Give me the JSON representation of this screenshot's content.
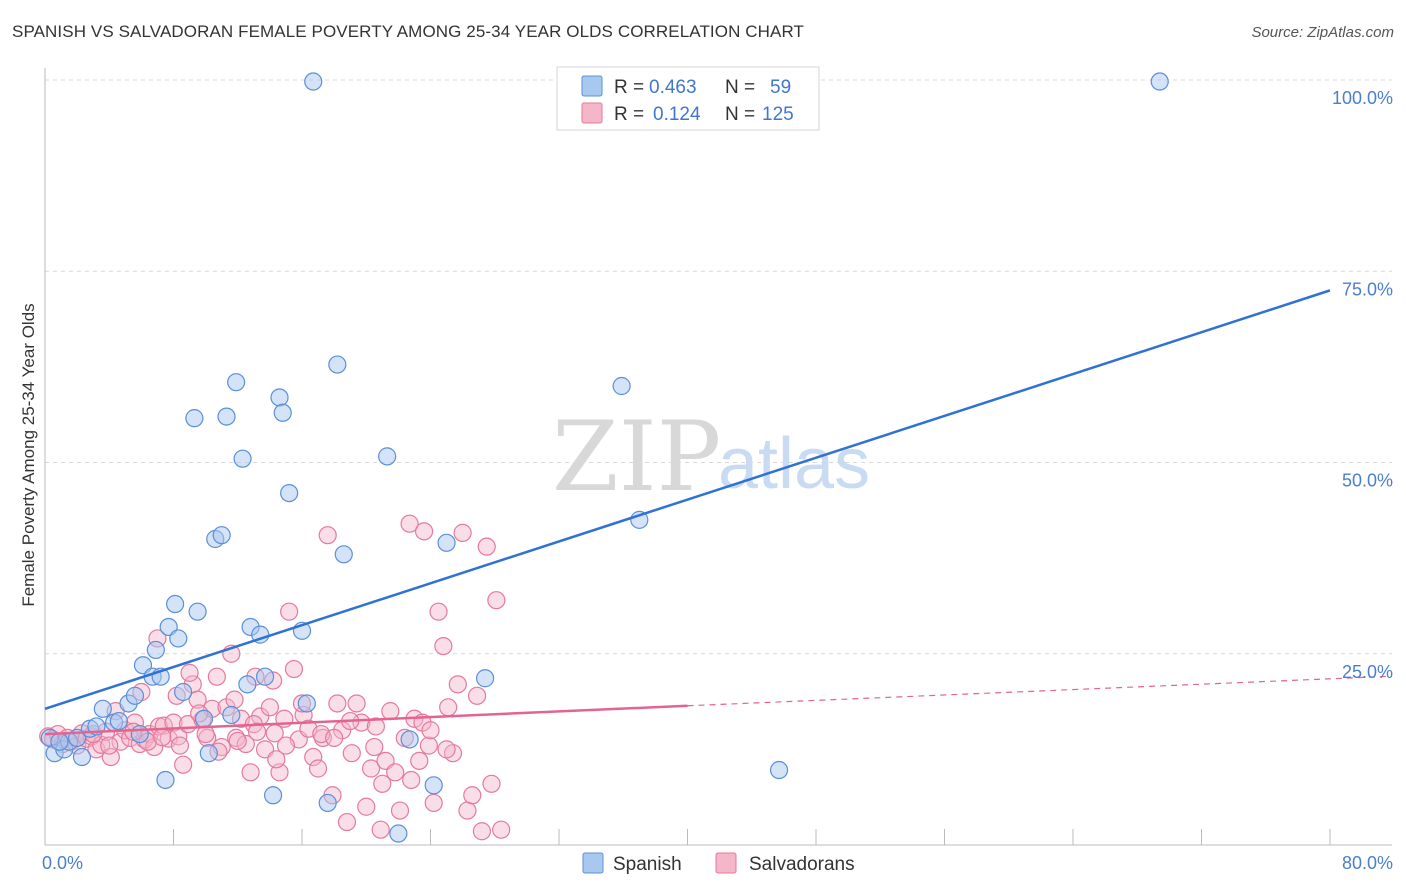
{
  "title": "SPANISH VS SALVADORAN FEMALE POVERTY AMONG 25-34 YEAR OLDS CORRELATION CHART",
  "source": "Source: ZipAtlas.com",
  "watermark": {
    "zip": "ZIP",
    "atlas": "atlas"
  },
  "legend": {
    "r_label": "R =",
    "n_label": "N =",
    "spanish": {
      "r": "0.463",
      "n": "59"
    },
    "salvadoran": {
      "r": "0.124",
      "n": "125"
    }
  },
  "colors": {
    "spanish_fill": "#a9c8f0",
    "spanish_stroke": "#5b8fd9",
    "spanish_line": "#2f72d3",
    "salvadoran_fill": "#f5b6c9",
    "salvadoran_stroke": "#e47a9d",
    "salvadoran_line": "#e4648f",
    "axis_text": "#4a7fd0",
    "grid": "#d9d9d9"
  },
  "chart_data": {
    "type": "scatter",
    "title": "SPANISH VS SALVADORAN FEMALE POVERTY AMONG 25-34 YEAR OLDS CORRELATION CHART",
    "xlabel": "",
    "ylabel": "Female Poverty Among 25-34 Year Olds",
    "xlim": [
      0,
      80
    ],
    "ylim": [
      0,
      100
    ],
    "x_tick_labels": [
      "0.0%",
      "80.0%"
    ],
    "y_tick_labels": [
      "25.0%",
      "50.0%",
      "75.0%",
      "100.0%"
    ],
    "y_ticks": [
      25,
      50,
      75,
      100
    ],
    "grid": true,
    "legend_position": "top-center",
    "series": [
      {
        "name": "Spanish",
        "r": 0.463,
        "n": 59,
        "trend": {
          "x0": 0,
          "y0": 17.8,
          "x1": 80,
          "y1": 72.5
        },
        "points": [
          [
            0.3,
            14.0
          ],
          [
            0.6,
            12.0
          ],
          [
            1.2,
            12.5
          ],
          [
            1.5,
            13.5
          ],
          [
            2.0,
            14.0
          ],
          [
            2.3,
            11.5
          ],
          [
            2.8,
            15.2
          ],
          [
            3.2,
            15.5
          ],
          [
            3.6,
            17.8
          ],
          [
            4.3,
            16.0
          ],
          [
            4.6,
            16.2
          ],
          [
            5.2,
            18.5
          ],
          [
            5.6,
            19.5
          ],
          [
            5.9,
            14.5
          ],
          [
            6.1,
            23.5
          ],
          [
            6.7,
            22.0
          ],
          [
            6.9,
            25.5
          ],
          [
            7.2,
            22.0
          ],
          [
            7.5,
            8.5
          ],
          [
            7.7,
            28.5
          ],
          [
            8.1,
            31.5
          ],
          [
            8.3,
            27.0
          ],
          [
            8.6,
            20.0
          ],
          [
            9.3,
            55.8
          ],
          [
            9.5,
            30.5
          ],
          [
            9.9,
            16.5
          ],
          [
            10.2,
            12.0
          ],
          [
            10.6,
            40.0
          ],
          [
            11.0,
            40.5
          ],
          [
            11.3,
            56.0
          ],
          [
            11.6,
            17.0
          ],
          [
            11.9,
            60.5
          ],
          [
            12.3,
            50.5
          ],
          [
            12.6,
            21.0
          ],
          [
            12.8,
            28.5
          ],
          [
            13.4,
            27.5
          ],
          [
            13.7,
            22.0
          ],
          [
            14.2,
            6.5
          ],
          [
            14.6,
            58.5
          ],
          [
            14.8,
            56.5
          ],
          [
            15.2,
            46.0
          ],
          [
            16.0,
            28.0
          ],
          [
            16.3,
            18.5
          ],
          [
            16.7,
            99.8
          ],
          [
            17.6,
            5.5
          ],
          [
            18.2,
            62.8
          ],
          [
            18.6,
            38.0
          ],
          [
            21.3,
            50.8
          ],
          [
            22.0,
            1.5
          ],
          [
            22.7,
            13.8
          ],
          [
            24.2,
            7.8
          ],
          [
            25.0,
            39.5
          ],
          [
            27.4,
            21.8
          ],
          [
            35.6,
            99.5
          ],
          [
            35.9,
            60.0
          ],
          [
            37.0,
            42.5
          ],
          [
            45.7,
            9.8
          ],
          [
            69.4,
            99.8
          ],
          [
            0.9,
            13.5
          ]
        ]
      },
      {
        "name": "Salvadorans",
        "r": 0.124,
        "n": 125,
        "trend": {
          "x0": 0,
          "y0": 14.5,
          "x1": 40,
          "y1": 18.2,
          "x2": 80,
          "y2": 22.0
        },
        "points": [
          [
            0.2,
            14.2
          ],
          [
            0.5,
            13.8
          ],
          [
            0.8,
            14.5
          ],
          [
            1.1,
            13.2
          ],
          [
            1.4,
            14.0
          ],
          [
            1.7,
            13.6
          ],
          [
            2.0,
            13.0
          ],
          [
            2.3,
            14.6
          ],
          [
            2.6,
            13.9
          ],
          [
            2.9,
            14.2
          ],
          [
            3.2,
            12.5
          ],
          [
            3.5,
            13.1
          ],
          [
            3.8,
            14.8
          ],
          [
            4.1,
            11.5
          ],
          [
            4.4,
            17.5
          ],
          [
            4.7,
            13.5
          ],
          [
            5.0,
            15.0
          ],
          [
            5.3,
            14.0
          ],
          [
            5.6,
            16.0
          ],
          [
            5.9,
            13.2
          ],
          [
            6.2,
            13.8
          ],
          [
            6.5,
            14.5
          ],
          [
            6.8,
            12.8
          ],
          [
            7.1,
            15.5
          ],
          [
            7.4,
            15.6
          ],
          [
            7.7,
            13.9
          ],
          [
            8.0,
            16.0
          ],
          [
            8.3,
            14.2
          ],
          [
            8.6,
            10.5
          ],
          [
            8.9,
            15.8
          ],
          [
            9.2,
            21.0
          ],
          [
            9.5,
            19.0
          ],
          [
            9.8,
            16.4
          ],
          [
            10.1,
            14.0
          ],
          [
            10.4,
            17.8
          ],
          [
            10.7,
            22.0
          ],
          [
            11.0,
            12.8
          ],
          [
            11.3,
            18.0
          ],
          [
            11.6,
            25.0
          ],
          [
            11.9,
            14.0
          ],
          [
            12.2,
            16.5
          ],
          [
            12.5,
            13.2
          ],
          [
            12.8,
            9.5
          ],
          [
            13.1,
            22.0
          ],
          [
            13.4,
            16.8
          ],
          [
            13.7,
            12.5
          ],
          [
            14.0,
            18.0
          ],
          [
            14.3,
            14.6
          ],
          [
            14.6,
            9.5
          ],
          [
            14.9,
            16.5
          ],
          [
            15.2,
            30.5
          ],
          [
            15.5,
            23.0
          ],
          [
            15.8,
            13.8
          ],
          [
            16.1,
            17.0
          ],
          [
            16.4,
            15.2
          ],
          [
            16.7,
            11.5
          ],
          [
            17.0,
            10.0
          ],
          [
            17.3,
            14.0
          ],
          [
            17.6,
            40.5
          ],
          [
            17.9,
            6.5
          ],
          [
            18.2,
            18.5
          ],
          [
            18.5,
            15.0
          ],
          [
            18.8,
            3.0
          ],
          [
            19.1,
            12.0
          ],
          [
            19.4,
            18.5
          ],
          [
            19.7,
            16.0
          ],
          [
            20.0,
            5.0
          ],
          [
            20.3,
            10.0
          ],
          [
            20.6,
            15.5
          ],
          [
            20.9,
            2.0
          ],
          [
            21.2,
            11.0
          ],
          [
            21.5,
            17.5
          ],
          [
            21.8,
            9.5
          ],
          [
            22.1,
            4.5
          ],
          [
            22.4,
            14.0
          ],
          [
            22.7,
            42.0
          ],
          [
            23.0,
            16.5
          ],
          [
            23.3,
            11.0
          ],
          [
            23.6,
            41.0
          ],
          [
            23.9,
            13.0
          ],
          [
            24.2,
            5.5
          ],
          [
            24.5,
            30.5
          ],
          [
            24.8,
            26.0
          ],
          [
            25.1,
            18.0
          ],
          [
            25.4,
            12.0
          ],
          [
            25.7,
            21.0
          ],
          [
            26.0,
            40.8
          ],
          [
            26.3,
            4.5
          ],
          [
            26.6,
            6.5
          ],
          [
            26.9,
            19.5
          ],
          [
            27.2,
            1.8
          ],
          [
            27.5,
            39.0
          ],
          [
            27.8,
            8.0
          ],
          [
            28.1,
            32.0
          ],
          [
            28.4,
            2.0
          ],
          [
            6.0,
            20.0
          ],
          [
            7.0,
            27.0
          ],
          [
            8.2,
            19.5
          ],
          [
            9.0,
            22.5
          ],
          [
            10.0,
            14.5
          ],
          [
            11.8,
            19.0
          ],
          [
            13.0,
            15.8
          ],
          [
            14.2,
            21.5
          ],
          [
            15.0,
            13.0
          ],
          [
            16.0,
            18.5
          ],
          [
            17.2,
            14.5
          ],
          [
            18.0,
            14.0
          ],
          [
            19.0,
            16.2
          ],
          [
            20.5,
            12.8
          ],
          [
            21.0,
            8.0
          ],
          [
            22.8,
            8.5
          ],
          [
            23.5,
            16.0
          ],
          [
            24.0,
            15.0
          ],
          [
            25.0,
            12.5
          ],
          [
            3.0,
            14.5
          ],
          [
            4.0,
            13.0
          ],
          [
            5.5,
            14.8
          ],
          [
            6.4,
            13.5
          ],
          [
            7.3,
            14.1
          ],
          [
            8.4,
            13.0
          ],
          [
            9.6,
            17.2
          ],
          [
            10.8,
            12.2
          ],
          [
            12.0,
            13.6
          ],
          [
            13.2,
            14.8
          ],
          [
            14.4,
            11.2
          ]
        ]
      }
    ]
  },
  "bottom_legend": {
    "spanish": "Spanish",
    "salvadorans": "Salvadorans"
  }
}
